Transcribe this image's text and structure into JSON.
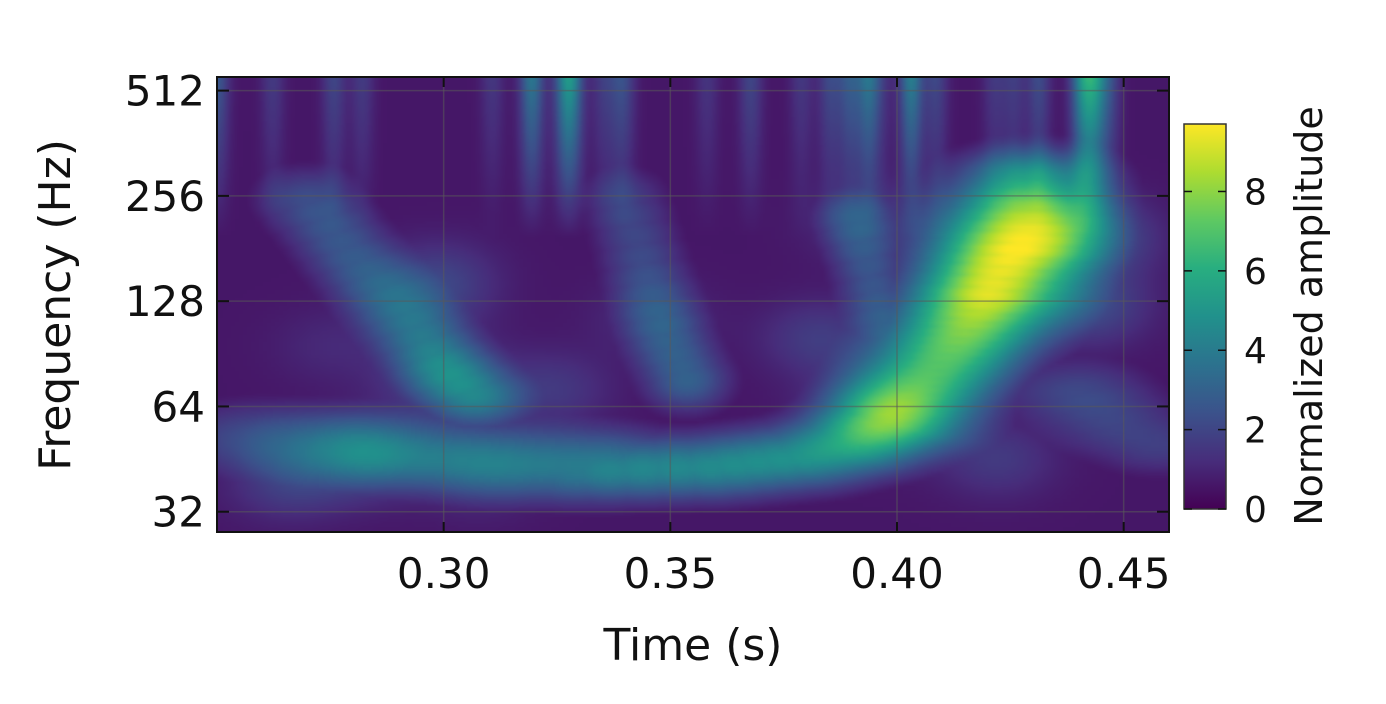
{
  "chart_data": {
    "type": "heatmap",
    "title": "",
    "xlabel": "Time (s)",
    "ylabel": "Frequency (Hz)",
    "xlim": [
      0.25,
      0.46
    ],
    "ylim": [
      28,
      560
    ],
    "y_scale": "log2",
    "grid": true,
    "x_ticks": [
      0.3,
      0.35,
      0.4,
      0.45
    ],
    "x_tick_labels": [
      "0.30",
      "0.35",
      "0.40",
      "0.45"
    ],
    "y_ticks": [
      32,
      64,
      128,
      256,
      512
    ],
    "y_tick_labels": [
      "32",
      "64",
      "128",
      "256",
      "512"
    ],
    "colorbar": {
      "label": "Normalized amplitude",
      "colormap": "viridis",
      "range": [
        0,
        9.7
      ],
      "ticks": [
        0,
        2,
        4,
        6,
        8
      ],
      "tick_labels": [
        "0",
        "2",
        "4",
        "6",
        "8"
      ]
    },
    "background_level": 0.6,
    "features": [
      {
        "name": "chirp",
        "points": [
          [
            0.33,
            42
          ],
          [
            0.36,
            43
          ],
          [
            0.38,
            46
          ],
          [
            0.39,
            50
          ],
          [
            0.4,
            58
          ],
          [
            0.405,
            70
          ],
          [
            0.41,
            85
          ],
          [
            0.415,
            105
          ],
          [
            0.42,
            135
          ],
          [
            0.425,
            180
          ],
          [
            0.428,
            240
          ],
          [
            0.43,
            300
          ]
        ],
        "amplitudes": [
          4.5,
          4.8,
          5.0,
          5.2,
          5.6,
          6.2,
          7.0,
          8.0,
          9.4,
          8.8,
          7.0,
          4.5
        ],
        "width_t": 0.012,
        "width_logf": 0.22
      },
      {
        "name": "low-band",
        "points": [
          [
            0.26,
            52
          ],
          [
            0.28,
            50
          ],
          [
            0.3,
            46
          ],
          [
            0.32,
            44
          ],
          [
            0.34,
            43
          ]
        ],
        "amplitudes": [
          2.6,
          3.0,
          3.5,
          3.8,
          4.2
        ],
        "width_t": 0.015,
        "width_logf": 0.25
      },
      {
        "name": "arc-left",
        "points": [
          [
            0.27,
            250
          ],
          [
            0.28,
            170
          ],
          [
            0.29,
            120
          ],
          [
            0.3,
            85
          ],
          [
            0.31,
            62
          ]
        ],
        "amplitudes": [
          2.6,
          2.8,
          3.0,
          3.4,
          3.6
        ],
        "width_t": 0.008,
        "width_logf": 0.22
      },
      {
        "name": "arc-mid",
        "points": [
          [
            0.34,
            250
          ],
          [
            0.345,
            150
          ],
          [
            0.35,
            95
          ],
          [
            0.355,
            70
          ]
        ],
        "amplitudes": [
          2.0,
          2.4,
          2.8,
          3.2
        ],
        "width_t": 0.007,
        "width_logf": 0.22
      },
      {
        "name": "arc-right",
        "points": [
          [
            0.39,
            220
          ],
          [
            0.395,
            140
          ],
          [
            0.4,
            95
          ]
        ],
        "amplitudes": [
          2.2,
          2.6,
          3.2
        ],
        "width_t": 0.006,
        "width_logf": 0.2
      },
      {
        "name": "tail",
        "points": [
          [
            0.44,
            70
          ],
          [
            0.45,
            55
          ],
          [
            0.46,
            48
          ]
        ],
        "amplitudes": [
          2.4,
          2.0,
          1.8
        ],
        "width_t": 0.012,
        "width_logf": 0.22
      }
    ]
  }
}
